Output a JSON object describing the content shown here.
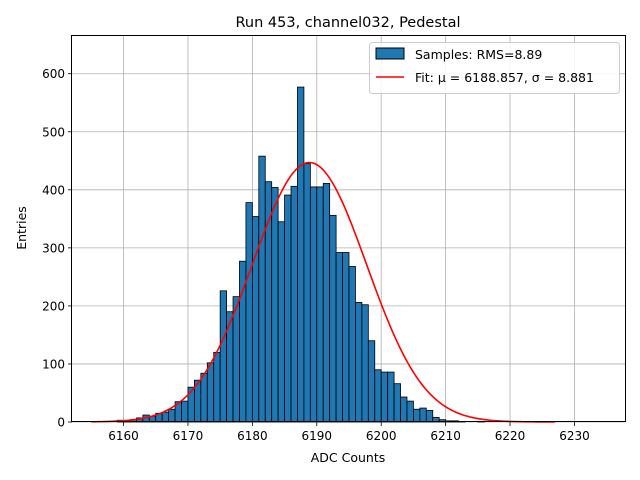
{
  "chart_data": {
    "type": "bar",
    "title": "Run 453, channel032, Pedestal",
    "xlabel": "ADC Counts",
    "ylabel": "Entries",
    "xlim": [
      6152,
      6238
    ],
    "ylim": [
      0,
      665
    ],
    "xticks": [
      6160,
      6170,
      6180,
      6190,
      6200,
      6210,
      6220,
      6230
    ],
    "yticks": [
      0,
      100,
      200,
      300,
      400,
      500,
      600
    ],
    "grid": true,
    "legend_position": "top-right",
    "bin_width": 1,
    "bin_start": 6159,
    "histogram": {
      "name": "Samples: RMS=8.89",
      "color": "#1f77b4",
      "edge_color": "#000000",
      "counts": [
        3,
        2,
        4,
        7,
        12,
        10,
        15,
        17,
        22,
        35,
        36,
        60,
        72,
        84,
        102,
        120,
        226,
        190,
        216,
        277,
        378,
        354,
        458,
        414,
        404,
        345,
        391,
        406,
        577,
        445,
        405,
        405,
        411,
        356,
        292,
        292,
        268,
        206,
        202,
        140,
        90,
        86,
        86,
        66,
        43,
        36,
        22,
        24,
        20,
        8,
        4,
        2,
        2,
        1,
        0,
        0,
        1,
        0,
        0,
        0,
        0,
        0,
        0,
        0,
        0,
        0,
        1
      ]
    },
    "fit": {
      "name": "Fit: μ = 6188.857, σ = 8.881",
      "mu": 6188.857,
      "sigma": 8.881,
      "amplitude": 447,
      "x_range": [
        6155,
        6227
      ],
      "color": "#ff0000"
    }
  }
}
